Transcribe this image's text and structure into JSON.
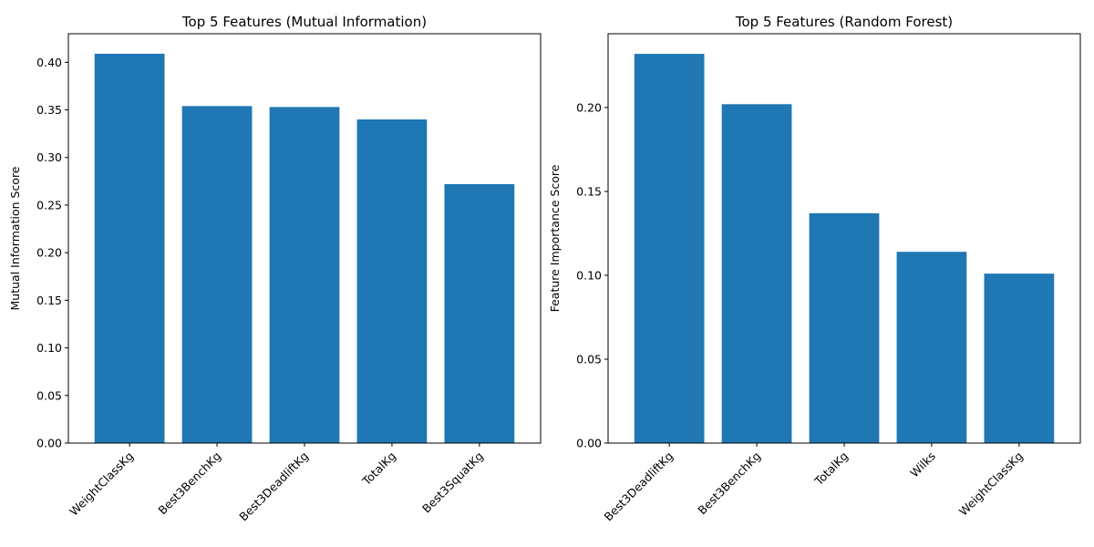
{
  "chart_data": [
    {
      "type": "bar",
      "title": "Top 5 Features (Mutual Information)",
      "xlabel": "",
      "ylabel": "Mutual Information Score",
      "categories": [
        "WeightClassKg",
        "Best3BenchKg",
        "Best3DeadliftKg",
        "TotalKg",
        "Best3SquatKg"
      ],
      "values": [
        0.409,
        0.354,
        0.353,
        0.34,
        0.272
      ],
      "ylim": [
        0,
        0.43
      ],
      "yticks": [
        "0.00",
        "0.05",
        "0.10",
        "0.15",
        "0.20",
        "0.25",
        "0.30",
        "0.35",
        "0.40"
      ],
      "color": "#1f77b4"
    },
    {
      "type": "bar",
      "title": "Top 5 Features (Random Forest)",
      "xlabel": "",
      "ylabel": "Feature Importance Score",
      "categories": [
        "Best3DeadliftKg",
        "Best3BenchKg",
        "TotalKg",
        "Wilks",
        "WeightClassKg"
      ],
      "values": [
        0.232,
        0.202,
        0.137,
        0.114,
        0.101
      ],
      "ylim": [
        0,
        0.244
      ],
      "yticks": [
        "0.00",
        "0.05",
        "0.10",
        "0.15",
        "0.20"
      ],
      "color": "#1f77b4"
    }
  ]
}
